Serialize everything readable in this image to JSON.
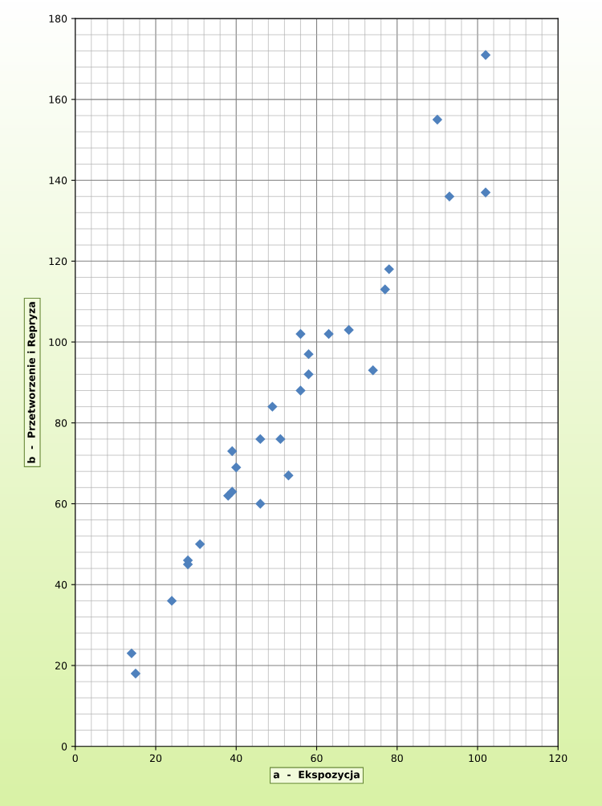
{
  "chart_data": {
    "type": "scatter",
    "xlabel": "a  -  Ekspozycja",
    "ylabel": "b  -  Przetworzenie i Repryza",
    "xlim": [
      0,
      120
    ],
    "xticks": [
      0,
      20,
      40,
      60,
      80,
      100,
      120
    ],
    "ylim": [
      0,
      180
    ],
    "yticks": [
      0,
      20,
      40,
      60,
      80,
      100,
      120,
      140,
      160,
      180
    ],
    "grid": true,
    "marker": "diamond",
    "series": [
      {
        "color": "#4f81bd",
        "x": [
          14,
          15,
          24,
          28,
          28,
          31,
          38,
          39,
          39,
          40,
          46,
          46,
          51,
          49,
          53,
          56,
          56,
          58,
          58,
          63,
          68,
          74,
          77,
          78,
          90,
          93,
          102,
          102
        ],
        "values": [
          23,
          18,
          36,
          46,
          45,
          50,
          62,
          63,
          73,
          69,
          60,
          76,
          76,
          84,
          67,
          102,
          88,
          97,
          92,
          102,
          103,
          93,
          113,
          118,
          155,
          136,
          137,
          171
        ]
      }
    ]
  }
}
